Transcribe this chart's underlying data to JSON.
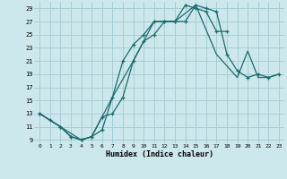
{
  "xlabel": "Humidex (Indice chaleur)",
  "bg_color": "#cce8ec",
  "grid_color": "#a8cdd5",
  "line_color": "#1a6b6b",
  "xlim": [
    -0.5,
    23.5
  ],
  "ylim": [
    8.5,
    30.0
  ],
  "xtick_vals": [
    0,
    1,
    2,
    3,
    4,
    5,
    6,
    7,
    8,
    9,
    10,
    11,
    12,
    13,
    14,
    15,
    16,
    17,
    18,
    19,
    20,
    21,
    22,
    23
  ],
  "ytick_vals": [
    9,
    11,
    13,
    15,
    17,
    19,
    21,
    23,
    25,
    27,
    29
  ],
  "line1_x": [
    0,
    1,
    2,
    3,
    4,
    5,
    6,
    7,
    8,
    9,
    10,
    11,
    12,
    13,
    14,
    15,
    16,
    17,
    18
  ],
  "line1_y": [
    13,
    12,
    11,
    9.5,
    9,
    9.5,
    10.5,
    15.5,
    21,
    23.5,
    25,
    27,
    27,
    27,
    29.5,
    29,
    28.5,
    25.5,
    25.5
  ],
  "line2_x": [
    0,
    2,
    3,
    4,
    5,
    6,
    7,
    8,
    9,
    10,
    11,
    12,
    13,
    14,
    15,
    16,
    17,
    18,
    19,
    20,
    21,
    22,
    23
  ],
  "line2_y": [
    13,
    11,
    9.5,
    9,
    9.5,
    12.5,
    13,
    15.5,
    21,
    24,
    25,
    27,
    27,
    27,
    29.5,
    29,
    28.5,
    22,
    19.5,
    18.5,
    19,
    18.5,
    19
  ],
  "line3_x": [
    0,
    4,
    5,
    7,
    9,
    11,
    13,
    15,
    17,
    19,
    20,
    21,
    22,
    23
  ],
  "line3_y": [
    13,
    9,
    9.5,
    15.5,
    21,
    27,
    27,
    29.5,
    22,
    18.5,
    22.5,
    18.5,
    18.5,
    19
  ]
}
